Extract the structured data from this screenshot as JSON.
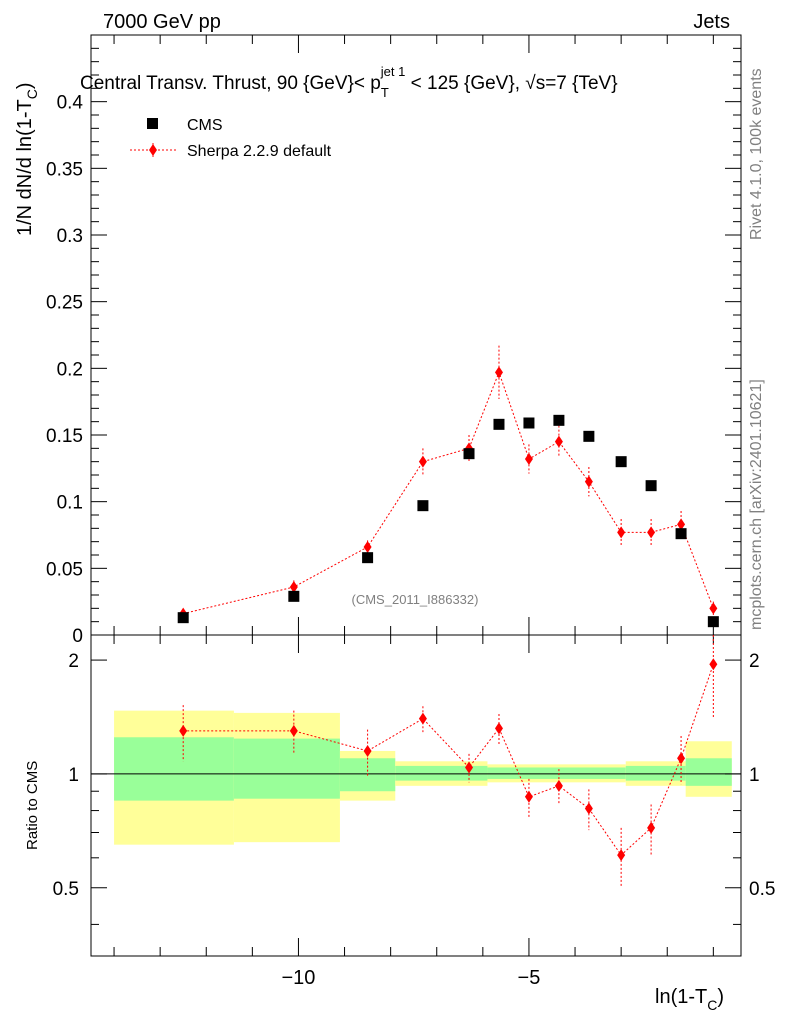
{
  "header": {
    "left": "7000 GeV pp",
    "right": "Jets",
    "title_main": "Central Transv. Thrust, 90 {GeV}< p",
    "title_sub": "T",
    "title_sup": "jet 1",
    "title_rest": " < 125 {GeV}, √s=7 {TeV}"
  },
  "side_labels": {
    "rivet": "Rivet 4.1.0,  100k events",
    "mcplots": "mcplots.cern.ch [arXiv:2401.10621]"
  },
  "watermark": "(CMS_2011_I886332)",
  "axes": {
    "ylabel_main": "1/N   dN/d ln(1-T",
    "ylabel_sub": "C",
    "ylabel_close": ")",
    "ylabel_ratio": "Ratio to CMS",
    "xlabel_main": "ln(1-T",
    "xlabel_sub": "C",
    "xlabel_close": ")"
  },
  "legend": {
    "data_label": "CMS",
    "mc_label": "Sherpa 2.2.9 default"
  },
  "colors": {
    "data": "#000000",
    "mc": "#ff0000",
    "band_inner": "#99ff99",
    "band_outer": "#ffff99"
  },
  "chart_data": {
    "type": "scatter",
    "xlim": [
      -14.5,
      -0.4
    ],
    "main_ylim": [
      0,
      0.45
    ],
    "ratio_ylim": [
      0.33,
      2.33
    ],
    "main_yticks": [
      "0",
      "0.05",
      "0.1",
      "0.15",
      "0.2",
      "0.25",
      "0.3",
      "0.35",
      "0.4"
    ],
    "main_ytick_values": [
      0,
      0.05,
      0.1,
      0.15,
      0.2,
      0.25,
      0.3,
      0.35,
      0.4
    ],
    "ratio_yticks": [
      "0.5",
      "1",
      "2"
    ],
    "ratio_ytick_values": [
      0.5,
      1,
      2
    ],
    "xticks": [
      "−10",
      "−5"
    ],
    "xtick_values": [
      -10,
      -5
    ],
    "series": [
      {
        "name": "CMS",
        "x": [
          -12.5,
          -10.1,
          -8.5,
          -7.3,
          -6.3,
          -5.65,
          -5.0,
          -4.35,
          -3.7,
          -3.0,
          -2.35,
          -1.7,
          -1.0
        ],
        "y": [
          0.013,
          0.029,
          0.058,
          0.097,
          0.136,
          0.158,
          0.159,
          0.161,
          0.149,
          0.13,
          0.112,
          0.076,
          0.01
        ]
      },
      {
        "name": "Sherpa 2.2.9 default",
        "x": [
          -12.5,
          -10.1,
          -8.5,
          -7.3,
          -6.3,
          -5.65,
          -5.0,
          -4.35,
          -3.7,
          -3.0,
          -2.35,
          -1.7,
          -1.0
        ],
        "y": [
          0.016,
          0.036,
          0.066,
          0.13,
          0.14,
          0.197,
          0.132,
          0.145,
          0.115,
          0.077,
          0.077,
          0.083,
          0.02
        ],
        "yerr": [
          0.003,
          0.005,
          0.005,
          0.01,
          0.01,
          0.02,
          0.011,
          0.012,
          0.011,
          0.01,
          0.01,
          0.01,
          0.005
        ]
      }
    ],
    "ratio": {
      "x": [
        -12.5,
        -10.1,
        -8.5,
        -7.3,
        -6.3,
        -5.65,
        -5.0,
        -4.35,
        -3.7,
        -3.0,
        -2.35,
        -1.7,
        -1.0
      ],
      "y": [
        1.3,
        1.3,
        1.15,
        1.4,
        1.04,
        1.32,
        0.87,
        0.93,
        0.81,
        0.61,
        0.72,
        1.1,
        1.95
      ],
      "yerr_up": [
        0.22,
        0.17,
        0.16,
        0.11,
        0.09,
        0.12,
        0.1,
        0.1,
        0.1,
        0.11,
        0.11,
        0.16,
        0.5
      ],
      "yerr_dn": [
        0.22,
        0.17,
        0.16,
        0.11,
        0.09,
        0.12,
        0.1,
        0.1,
        0.1,
        0.11,
        0.11,
        0.16,
        0.55
      ]
    },
    "bands": [
      {
        "x0": -14.0,
        "x1": -11.4,
        "inner": [
          0.85,
          1.25
        ],
        "outer": [
          0.65,
          1.47
        ]
      },
      {
        "x0": -11.4,
        "x1": -9.1,
        "inner": [
          0.86,
          1.24
        ],
        "outer": [
          0.66,
          1.45
        ]
      },
      {
        "x0": -9.1,
        "x1": -7.9,
        "inner": [
          0.9,
          1.1
        ],
        "outer": [
          0.85,
          1.15
        ]
      },
      {
        "x0": -7.9,
        "x1": -5.9,
        "inner": [
          0.96,
          1.05
        ],
        "outer": [
          0.93,
          1.08
        ]
      },
      {
        "x0": -5.9,
        "x1": -2.9,
        "inner": [
          0.97,
          1.04
        ],
        "outer": [
          0.95,
          1.06
        ]
      },
      {
        "x0": -2.9,
        "x1": -1.6,
        "inner": [
          0.96,
          1.05
        ],
        "outer": [
          0.93,
          1.08
        ]
      },
      {
        "x0": -1.6,
        "x1": -0.6,
        "inner": [
          0.93,
          1.1
        ],
        "outer": [
          0.87,
          1.22
        ]
      }
    ]
  }
}
